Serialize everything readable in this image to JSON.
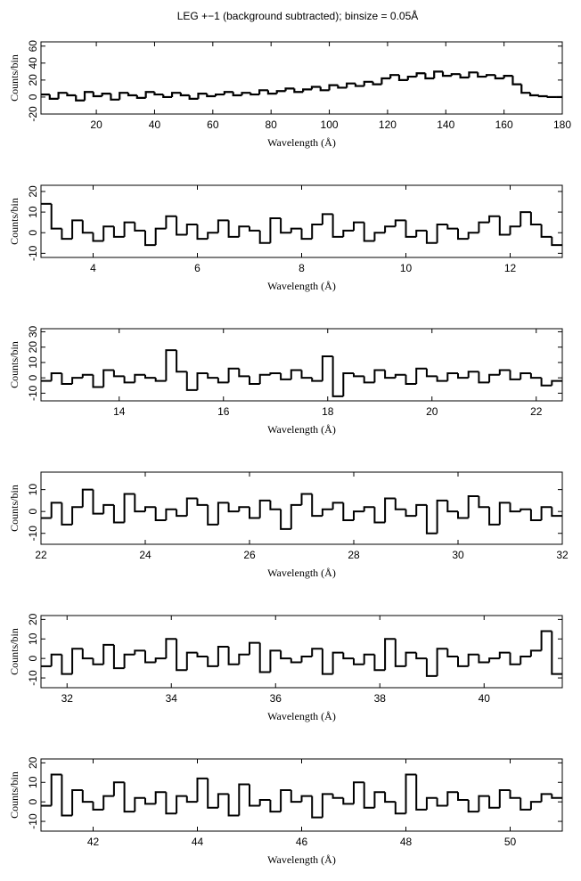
{
  "chart_data": [
    {
      "type": "step",
      "title": "LEG +−1 (background subtracted); binsize = 0.05Å",
      "xlabel": "Wavelength (Å)",
      "ylabel": "Counts/bin",
      "xlim": [
        1,
        180
      ],
      "xticks": [
        20,
        40,
        60,
        80,
        100,
        120,
        140,
        160,
        180
      ],
      "ylim": [
        -20,
        65
      ],
      "yticks": [
        -20,
        0,
        20,
        40,
        60
      ],
      "color": "#000000",
      "x": [
        1,
        4,
        7,
        10,
        13,
        16,
        19,
        22,
        25,
        28,
        31,
        34,
        37,
        40,
        43,
        46,
        49,
        52,
        55,
        58,
        61,
        64,
        67,
        70,
        73,
        76,
        79,
        82,
        85,
        88,
        91,
        94,
        97,
        100,
        103,
        106,
        109,
        112,
        115,
        118,
        121,
        124,
        127,
        130,
        133,
        136,
        139,
        142,
        145,
        148,
        151,
        154,
        157,
        160,
        163,
        166,
        169,
        172,
        175,
        178
      ],
      "values": [
        3,
        -2,
        5,
        2,
        -4,
        6,
        1,
        4,
        -3,
        5,
        2,
        -1,
        6,
        3,
        0,
        5,
        2,
        -2,
        4,
        1,
        3,
        6,
        2,
        5,
        3,
        8,
        4,
        7,
        10,
        6,
        9,
        12,
        8,
        14,
        11,
        16,
        13,
        18,
        15,
        22,
        26,
        20,
        24,
        28,
        22,
        30,
        25,
        27,
        23,
        29,
        24,
        26,
        22,
        25,
        15,
        5,
        2,
        1,
        0,
        0
      ]
    },
    {
      "type": "step",
      "xlabel": "Wavelength (Å)",
      "ylabel": "Counts/bin",
      "xlim": [
        3,
        13
      ],
      "xticks": [
        4,
        6,
        8,
        10,
        12
      ],
      "ylim": [
        -12,
        23
      ],
      "yticks": [
        -10,
        0,
        10,
        20
      ],
      "color": "#000000",
      "x": [
        3.0,
        3.2,
        3.4,
        3.6,
        3.8,
        4.0,
        4.2,
        4.4,
        4.6,
        4.8,
        5.0,
        5.2,
        5.4,
        5.6,
        5.8,
        6.0,
        6.2,
        6.4,
        6.6,
        6.8,
        7.0,
        7.2,
        7.4,
        7.6,
        7.8,
        8.0,
        8.2,
        8.4,
        8.6,
        8.8,
        9.0,
        9.2,
        9.4,
        9.6,
        9.8,
        10.0,
        10.2,
        10.4,
        10.6,
        10.8,
        11.0,
        11.2,
        11.4,
        11.6,
        11.8,
        12.0,
        12.2,
        12.4,
        12.6,
        12.8
      ],
      "values": [
        14,
        2,
        -3,
        6,
        0,
        -4,
        3,
        -2,
        5,
        1,
        -6,
        2,
        8,
        -1,
        4,
        -3,
        0,
        6,
        -2,
        3,
        1,
        -5,
        7,
        0,
        2,
        -3,
        4,
        9,
        -2,
        1,
        5,
        -4,
        0,
        3,
        6,
        -2,
        1,
        -5,
        4,
        2,
        -3,
        0,
        5,
        8,
        -1,
        3,
        10,
        4,
        -2,
        -6
      ]
    },
    {
      "type": "step",
      "xlabel": "Wavelength (Å)",
      "ylabel": "Counts/bin",
      "xlim": [
        12.5,
        22.5
      ],
      "xticks": [
        14,
        16,
        18,
        20,
        22
      ],
      "ylim": [
        -15,
        32
      ],
      "yticks": [
        -10,
        0,
        10,
        20,
        30
      ],
      "color": "#000000",
      "x": [
        12.5,
        12.7,
        12.9,
        13.1,
        13.3,
        13.5,
        13.7,
        13.9,
        14.1,
        14.3,
        14.5,
        14.7,
        14.9,
        15.1,
        15.3,
        15.5,
        15.7,
        15.9,
        16.1,
        16.3,
        16.5,
        16.7,
        16.9,
        17.1,
        17.3,
        17.5,
        17.7,
        17.9,
        18.1,
        18.3,
        18.5,
        18.7,
        18.9,
        19.1,
        19.3,
        19.5,
        19.7,
        19.9,
        20.1,
        20.3,
        20.5,
        20.7,
        20.9,
        21.1,
        21.3,
        21.5,
        21.7,
        21.9,
        22.1,
        22.3
      ],
      "values": [
        -2,
        3,
        -4,
        0,
        2,
        -6,
        5,
        1,
        -3,
        2,
        0,
        -2,
        18,
        4,
        -8,
        3,
        0,
        -3,
        6,
        1,
        -4,
        2,
        3,
        -1,
        5,
        0,
        -2,
        14,
        -12,
        3,
        1,
        -3,
        5,
        0,
        2,
        -4,
        6,
        1,
        -2,
        3,
        0,
        4,
        -3,
        2,
        5,
        -1,
        3,
        0,
        -5,
        -2
      ]
    },
    {
      "type": "step",
      "xlabel": "Wavelength (Å)",
      "ylabel": "Counts/bin",
      "xlim": [
        22,
        32
      ],
      "xticks": [
        22,
        24,
        26,
        28,
        30,
        32
      ],
      "ylim": [
        -15,
        18
      ],
      "yticks": [
        -10,
        0,
        10
      ],
      "color": "#000000",
      "x": [
        22.0,
        22.2,
        22.4,
        22.6,
        22.8,
        23.0,
        23.2,
        23.4,
        23.6,
        23.8,
        24.0,
        24.2,
        24.4,
        24.6,
        24.8,
        25.0,
        25.2,
        25.4,
        25.6,
        25.8,
        26.0,
        26.2,
        26.4,
        26.6,
        26.8,
        27.0,
        27.2,
        27.4,
        27.6,
        27.8,
        28.0,
        28.2,
        28.4,
        28.6,
        28.8,
        29.0,
        29.2,
        29.4,
        29.6,
        29.8,
        30.0,
        30.2,
        30.4,
        30.6,
        30.8,
        31.0,
        31.2,
        31.4,
        31.6,
        31.8
      ],
      "values": [
        -3,
        4,
        -6,
        2,
        10,
        -1,
        3,
        -5,
        8,
        0,
        2,
        -4,
        1,
        -2,
        6,
        3,
        -6,
        4,
        0,
        2,
        -3,
        5,
        1,
        -8,
        3,
        8,
        -2,
        1,
        4,
        -4,
        0,
        2,
        -5,
        6,
        1,
        -2,
        3,
        -10,
        5,
        0,
        -3,
        7,
        2,
        -6,
        4,
        0,
        1,
        -4,
        2,
        -2
      ]
    },
    {
      "type": "step",
      "xlabel": "Wavelength (Å)",
      "ylabel": "Counts/bin",
      "xlim": [
        31.5,
        41.5
      ],
      "xticks": [
        32,
        34,
        36,
        38,
        40
      ],
      "ylim": [
        -15,
        22
      ],
      "yticks": [
        -10,
        0,
        10,
        20
      ],
      "color": "#000000",
      "x": [
        31.5,
        31.7,
        31.9,
        32.1,
        32.3,
        32.5,
        32.7,
        32.9,
        33.1,
        33.3,
        33.5,
        33.7,
        33.9,
        34.1,
        34.3,
        34.5,
        34.7,
        34.9,
        35.1,
        35.3,
        35.5,
        35.7,
        35.9,
        36.1,
        36.3,
        36.5,
        36.7,
        36.9,
        37.1,
        37.3,
        37.5,
        37.7,
        37.9,
        38.1,
        38.3,
        38.5,
        38.7,
        38.9,
        39.1,
        39.3,
        39.5,
        39.7,
        39.9,
        40.1,
        40.3,
        40.5,
        40.7,
        40.9,
        41.1,
        41.3
      ],
      "values": [
        -4,
        2,
        -8,
        5,
        0,
        -3,
        7,
        -5,
        2,
        4,
        -2,
        0,
        10,
        -6,
        3,
        1,
        -4,
        6,
        -3,
        2,
        8,
        -7,
        4,
        0,
        -2,
        1,
        5,
        -8,
        3,
        0,
        -3,
        2,
        -6,
        10,
        -4,
        3,
        0,
        -9,
        5,
        1,
        -4,
        2,
        -2,
        0,
        3,
        -3,
        1,
        4,
        14,
        -8
      ]
    },
    {
      "type": "step",
      "xlabel": "Wavelength (Å)",
      "ylabel": "Counts/bin",
      "xlim": [
        41,
        51
      ],
      "xticks": [
        42,
        44,
        46,
        48,
        50
      ],
      "ylim": [
        -15,
        22
      ],
      "yticks": [
        -10,
        0,
        10,
        20
      ],
      "color": "#000000",
      "x": [
        41.0,
        41.2,
        41.4,
        41.6,
        41.8,
        42.0,
        42.2,
        42.4,
        42.6,
        42.8,
        43.0,
        43.2,
        43.4,
        43.6,
        43.8,
        44.0,
        44.2,
        44.4,
        44.6,
        44.8,
        45.0,
        45.2,
        45.4,
        45.6,
        45.8,
        46.0,
        46.2,
        46.4,
        46.6,
        46.8,
        47.0,
        47.2,
        47.4,
        47.6,
        47.8,
        48.0,
        48.2,
        48.4,
        48.6,
        48.8,
        49.0,
        49.2,
        49.4,
        49.6,
        49.8,
        50.0,
        50.2,
        50.4,
        50.6,
        50.8
      ],
      "values": [
        -2,
        14,
        -7,
        6,
        0,
        -4,
        3,
        10,
        -5,
        2,
        -1,
        5,
        -6,
        3,
        0,
        12,
        -3,
        4,
        -7,
        9,
        -2,
        1,
        -5,
        6,
        0,
        3,
        -8,
        4,
        2,
        -1,
        10,
        -3,
        5,
        0,
        -6,
        14,
        -4,
        2,
        -2,
        5,
        1,
        -5,
        3,
        -3,
        6,
        2,
        -4,
        0,
        4,
        2
      ]
    }
  ]
}
